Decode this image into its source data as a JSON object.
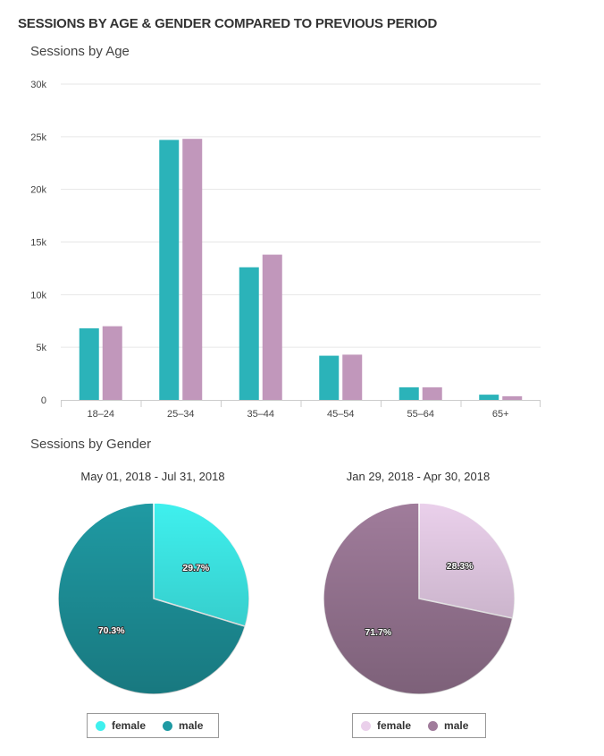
{
  "header": {
    "title": "SESSIONS BY AGE & GENDER COMPARED TO PREVIOUS PERIOD"
  },
  "colors": {
    "current": "#2bb3b9",
    "previous": "#c197bb",
    "female_current": "#3ff0ee",
    "male_current": "#1f9aa3",
    "female_previous": "#ead0eb",
    "male_previous": "#a07c9b",
    "grid": "#e6e6e6"
  },
  "chart_data": [
    {
      "type": "bar",
      "title": "Sessions by Age",
      "xlabel": "",
      "ylabel": "",
      "categories": [
        "18–24",
        "25–34",
        "35–44",
        "45–54",
        "55–64",
        "65+"
      ],
      "series": [
        {
          "name": "May 01, 2018 - Jul 31, 2018",
          "values": [
            6800,
            24700,
            12600,
            4200,
            1200,
            500
          ]
        },
        {
          "name": "Jan 29, 2018 - Apr 30, 2018",
          "values": [
            7000,
            24800,
            13800,
            4300,
            1200,
            350
          ]
        }
      ],
      "ylim": [
        0,
        30000
      ],
      "yticks": [
        0,
        5000,
        10000,
        15000,
        20000,
        25000,
        30000
      ],
      "ytick_labels": [
        "0",
        "5k",
        "10k",
        "15k",
        "20k",
        "25k",
        "30k"
      ],
      "grid": true
    },
    {
      "type": "pie",
      "title": "Sessions by Gender",
      "subtitle": "May 01, 2018 - Jul 31, 2018",
      "labels": [
        "female",
        "male"
      ],
      "values": [
        29.7,
        70.3
      ],
      "value_labels": [
        "29.7%",
        "70.3%"
      ],
      "legend": "bottom"
    },
    {
      "type": "pie",
      "title": "Sessions by Gender",
      "subtitle": "Jan 29, 2018 - Apr 30, 2018",
      "labels": [
        "female",
        "male"
      ],
      "values": [
        28.3,
        71.7
      ],
      "value_labels": [
        "28.3%",
        "71.7%"
      ],
      "legend": "bottom"
    }
  ]
}
